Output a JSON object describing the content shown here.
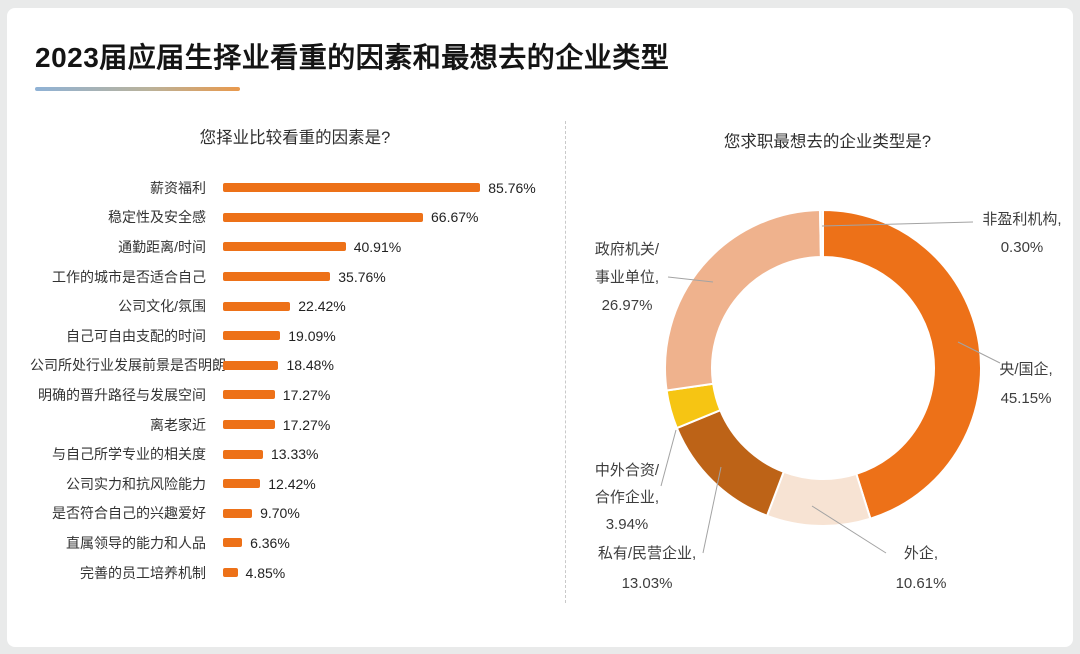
{
  "slide": {
    "title": "2023届应届生择业看重的因素和最想去的企业类型"
  },
  "styles": {
    "bar_color": "#ED7118",
    "leader_line_color": "#A3A3A3",
    "divider_color": "#C9C9C9",
    "underline_gradient": [
      "#8FB2D6",
      "#E9994C"
    ],
    "label_text_color": "#3D3D3D"
  },
  "chart_data": [
    {
      "type": "bar",
      "orientation": "horizontal",
      "title": "您择业比较看重的因素是?",
      "categories": [
        "薪资福利",
        "稳定性及安全感",
        "通勤距离/时间",
        "工作的城市是否适合自己",
        "公司文化/氛围",
        "自己可自由支配的时间",
        "公司所处行业发展前景是否明朗",
        "明确的晋升路径与发展空间",
        "离老家近",
        "与自己所学专业的相关度",
        "公司实力和抗风险能力",
        "是否符合自己的兴趣爱好",
        "直属领导的能力和人品",
        "完善的员工培养机制"
      ],
      "values": [
        85.76,
        66.67,
        40.91,
        35.76,
        22.42,
        19.09,
        18.48,
        17.27,
        17.27,
        13.33,
        12.42,
        9.7,
        6.36,
        4.85
      ],
      "value_labels": [
        "85.76%",
        "66.67%",
        "40.91%",
        "35.76%",
        "22.42%",
        "19.09%",
        "18.48%",
        "17.27%",
        "17.27%",
        "13.33%",
        "12.42%",
        "9.70%",
        "6.36%",
        "4.85%"
      ],
      "xlim": [
        0,
        100
      ],
      "grid": false,
      "bar_color": "#ED7118"
    },
    {
      "type": "pie",
      "subtype": "donut",
      "title": "您求职最想去的企业类型是?",
      "start_angle_deg": 0,
      "clockwise": true,
      "legend_position": "none",
      "slices": [
        {
          "label": "央/国企",
          "value": 45.15,
          "color": "#ED7118",
          "label_lines": [
            "央/国企,",
            "45.15%"
          ]
        },
        {
          "label": "外企",
          "value": 10.61,
          "color": "#F7E3D3",
          "label_lines": [
            "外企,",
            "10.61%"
          ]
        },
        {
          "label": "私有/民营企业",
          "value": 13.03,
          "color": "#BD6317",
          "label_lines": [
            "私有/民营企业,",
            "13.03%"
          ]
        },
        {
          "label": "中外合资/合作企业",
          "value": 3.94,
          "color": "#F6C513",
          "label_lines": [
            "中外合资/",
            "合作企业,",
            "3.94%"
          ]
        },
        {
          "label": "政府机关/事业单位",
          "value": 26.97,
          "color": "#EFB28D",
          "label_lines": [
            "政府机关/",
            "事业单位,",
            "26.97%"
          ]
        },
        {
          "label": "非盈利机构",
          "value": 0.3,
          "color": "#FBF6F0",
          "label_lines": [
            "非盈利机构,",
            "0.30%"
          ]
        }
      ]
    }
  ]
}
